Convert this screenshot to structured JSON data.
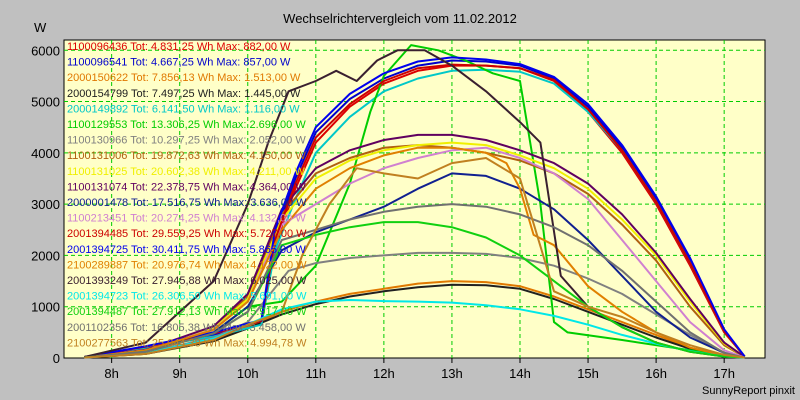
{
  "chart_data": {
    "type": "line",
    "title": "Wechselrichtervergleich vom 11.02.2012",
    "ylabel": "W",
    "footer": "SunnyReport pinxit",
    "ylim": [
      0,
      6200
    ],
    "xlim": [
      7.3,
      17.6
    ],
    "y_ticks": [
      "0",
      "1000",
      "2000",
      "3000",
      "4000",
      "5000",
      "6000"
    ],
    "x_ticks": [
      "8h",
      "9h",
      "10h",
      "11h",
      "12h",
      "13h",
      "14h",
      "15h",
      "16h",
      "17h"
    ],
    "grid": true,
    "legend_position": "top-left",
    "plot_background": "#ffffc8",
    "grid_color": "#00cc00",
    "series": [
      {
        "name": "1100096436 Tot: 4.831,25 Wh Max: 882,00 W",
        "color": "#dd0000",
        "x": [
          7.6,
          8.5,
          9.5,
          10.2,
          10.4,
          10.7,
          11.0,
          11.5,
          12.0,
          12.5,
          13.0,
          13.5,
          14.0,
          14.5,
          15.0,
          15.5,
          16.0,
          16.5,
          17.0,
          17.3
        ],
        "y": [
          20,
          200,
          450,
          700,
          2200,
          3300,
          4200,
          4900,
          5350,
          5600,
          5700,
          5700,
          5650,
          5400,
          4800,
          4000,
          3000,
          1800,
          500,
          30
        ]
      },
      {
        "name": "1100096541 Tot: 4.667,25 Wh Max: 857,00 W",
        "color": "#0000cc",
        "x": [
          7.6,
          8.5,
          9.5,
          10.2,
          10.4,
          10.7,
          11.0,
          11.5,
          12.0,
          12.5,
          13.0,
          13.5,
          14.0,
          14.5,
          15.0,
          15.5,
          16.0,
          16.5,
          17.0,
          17.3
        ],
        "y": [
          20,
          200,
          450,
          700,
          2400,
          3500,
          4400,
          5050,
          5450,
          5700,
          5800,
          5780,
          5700,
          5450,
          4900,
          4100,
          3100,
          1900,
          550,
          30
        ]
      },
      {
        "name": "2000150622 Tot: 7.856,13 Wh Max: 1.513,00 W",
        "color": "#e07800",
        "x": [
          7.6,
          8.5,
          9.5,
          10.0,
          10.5,
          11.0,
          11.5,
          12.0,
          12.5,
          13.0,
          13.5,
          14.0,
          14.5,
          15.0,
          15.5,
          16.0,
          16.5,
          17.0,
          17.3
        ],
        "y": [
          10,
          80,
          350,
          600,
          900,
          1100,
          1250,
          1350,
          1450,
          1500,
          1480,
          1400,
          1200,
          950,
          700,
          450,
          200,
          50,
          10
        ]
      },
      {
        "name": "2000154799 Tot: 7.497,25 Wh Max: 1.445,00 W",
        "color": "#202020",
        "x": [
          7.6,
          8.5,
          9.5,
          10.0,
          10.5,
          11.0,
          11.5,
          12.0,
          12.5,
          13.0,
          13.5,
          14.0,
          14.5,
          15.0,
          15.5,
          16.0,
          16.5,
          17.0,
          17.3
        ],
        "y": [
          10,
          80,
          330,
          580,
          850,
          1050,
          1200,
          1300,
          1380,
          1430,
          1420,
          1350,
          1150,
          900,
          650,
          400,
          180,
          40,
          10
        ]
      },
      {
        "name": "2000149892 Tot: 6.141,50 Wh Max: 1.116,00 W",
        "color": "#00c8c8",
        "x": [
          7.6,
          8.5,
          9.5,
          10.2,
          10.4,
          10.7,
          11.0,
          11.5,
          12.0,
          12.5,
          13.0,
          13.5,
          14.0,
          14.5,
          15.0,
          15.5,
          16.0,
          16.5,
          17.0,
          17.3
        ],
        "y": [
          20,
          200,
          420,
          650,
          2100,
          3100,
          4000,
          4700,
          5200,
          5450,
          5600,
          5620,
          5580,
          5350,
          4800,
          4050,
          3050,
          1850,
          520,
          30
        ]
      },
      {
        "name": "1100129553 Tot: 13.306,25 Wh Max: 2.696,00 W",
        "color": "#00cc00",
        "x": [
          7.6,
          8.5,
          9.5,
          10.0,
          10.5,
          11.0,
          11.5,
          11.8,
          12.0,
          12.4,
          12.8,
          13.2,
          13.6,
          14.0,
          14.3,
          14.5,
          14.7,
          15.5,
          16.5,
          17.2
        ],
        "y": [
          10,
          150,
          500,
          1000,
          1100,
          1800,
          3400,
          4800,
          5500,
          6100,
          6000,
          5800,
          5550,
          5400,
          3000,
          700,
          500,
          350,
          150,
          20
        ]
      },
      {
        "name": "1100130966 Tot: 10.297,25 Wh Max: 2.052,00 W",
        "color": "#808080",
        "x": [
          7.6,
          8.5,
          9.5,
          10.0,
          10.6,
          11.0,
          11.5,
          12.0,
          12.5,
          13.0,
          13.5,
          14.0,
          14.5,
          15.0,
          15.5,
          16.0,
          16.5,
          17.0,
          17.3
        ],
        "y": [
          10,
          100,
          400,
          700,
          1700,
          1850,
          1950,
          2000,
          2050,
          2050,
          2030,
          1950,
          1800,
          1550,
          1250,
          850,
          450,
          100,
          10
        ]
      },
      {
        "name": "1100131006 Tot: 19.872,63 Wh Max: 4.150,00 W",
        "color": "#b06010",
        "x": [
          7.6,
          8.5,
          9.5,
          10.0,
          10.5,
          11.0,
          11.5,
          12.0,
          12.5,
          13.0,
          13.5,
          14.0,
          14.5,
          15.0,
          15.5,
          16.0,
          16.5,
          17.0,
          17.3
        ],
        "y": [
          10,
          150,
          600,
          1200,
          2800,
          3600,
          3900,
          4100,
          4150,
          4100,
          4000,
          3850,
          3600,
          3200,
          2600,
          1900,
          1000,
          250,
          20
        ]
      },
      {
        "name": "1100131025 Tot: 20.602,38 Wh Max: 4.211,00 W",
        "color": "#f0f000",
        "x": [
          7.6,
          8.5,
          9.5,
          10.0,
          10.5,
          11.0,
          11.5,
          12.0,
          12.5,
          13.0,
          13.5,
          14.0,
          14.5,
          15.0,
          15.5,
          16.0,
          16.5,
          17.0,
          17.3
        ],
        "y": [
          10,
          150,
          580,
          1150,
          2700,
          3500,
          3850,
          4050,
          4150,
          4200,
          4150,
          3950,
          3700,
          3300,
          2700,
          2000,
          1100,
          280,
          20
        ]
      },
      {
        "name": "1100131074 Tot: 22.378,75 Wh Max: 4.364,00 W",
        "color": "#600060",
        "x": [
          7.6,
          8.5,
          9.5,
          10.0,
          10.5,
          11.0,
          11.5,
          12.0,
          12.5,
          13.0,
          13.5,
          14.0,
          14.5,
          15.0,
          15.5,
          16.0,
          16.5,
          17.0,
          17.3
        ],
        "y": [
          10,
          160,
          620,
          1250,
          2900,
          3700,
          4050,
          4250,
          4350,
          4350,
          4250,
          4050,
          3800,
          3400,
          2800,
          2050,
          1150,
          300,
          20
        ]
      },
      {
        "name": "2000001478 Tot: 17.516,75 Wh Max: 3.636,00 W",
        "color": "#102090",
        "x": [
          7.6,
          8.5,
          9.5,
          10.0,
          10.5,
          11.0,
          11.5,
          12.0,
          12.5,
          13.0,
          13.5,
          14.0,
          14.5,
          15.0,
          15.5,
          16.0,
          16.5,
          17.0,
          17.3
        ],
        "y": [
          10,
          120,
          500,
          1000,
          2100,
          2450,
          2700,
          2950,
          3300,
          3600,
          3550,
          3300,
          2900,
          2300,
          1600,
          900,
          400,
          100,
          10
        ]
      },
      {
        "name": "1100213451 Tot: 20.274,25 Wh Max: 4.132,00 W",
        "color": "#d080d0",
        "x": [
          7.6,
          8.5,
          9.5,
          10.0,
          10.5,
          11.0,
          11.5,
          12.0,
          12.5,
          13.0,
          13.5,
          14.0,
          14.5,
          15.0,
          15.5,
          16.0,
          16.5,
          17.0,
          17.3
        ],
        "y": [
          10,
          150,
          560,
          1100,
          2600,
          3000,
          3400,
          3700,
          3900,
          4050,
          4100,
          3900,
          3600,
          3100,
          2300,
          1500,
          700,
          150,
          10
        ]
      },
      {
        "name": "2001394485 Tot: 29.559,25 Wh Max: 5.727,00 W",
        "color": "#cc0000",
        "x": [
          7.6,
          8.5,
          9.5,
          10.2,
          10.4,
          10.7,
          11.0,
          11.5,
          12.0,
          12.5,
          13.0,
          13.5,
          14.0,
          14.5,
          15.0,
          15.5,
          16.0,
          16.5,
          17.0,
          17.3
        ],
        "y": [
          20,
          220,
          480,
          720,
          2300,
          3400,
          4300,
          4950,
          5400,
          5650,
          5720,
          5700,
          5650,
          5420,
          4850,
          4050,
          3050,
          1850,
          520,
          30
        ]
      },
      {
        "name": "2001394725 Tot: 30.411,75 Wh Max: 5.865,00 W",
        "color": "#0000ee",
        "x": [
          7.6,
          8.5,
          9.5,
          10.2,
          10.4,
          10.7,
          11.0,
          11.5,
          12.0,
          12.5,
          13.0,
          13.5,
          14.0,
          14.5,
          15.0,
          15.5,
          16.0,
          16.5,
          17.0,
          17.3
        ],
        "y": [
          20,
          230,
          500,
          740,
          2500,
          3600,
          4500,
          5150,
          5550,
          5780,
          5860,
          5820,
          5730,
          5480,
          4950,
          4150,
          3150,
          1950,
          560,
          30
        ]
      },
      {
        "name": "2100289887 Tot: 20.976,74 Wh Max: 4.122,00 W",
        "color": "#e08000",
        "x": [
          7.6,
          8.5,
          9.5,
          10.0,
          10.5,
          11.0,
          11.5,
          12.0,
          12.5,
          13.0,
          13.5,
          13.8,
          14.0,
          14.2,
          14.5,
          15.0,
          15.5,
          16.0,
          16.5,
          17.0,
          17.3
        ],
        "y": [
          10,
          150,
          550,
          1100,
          2500,
          3300,
          3700,
          3950,
          4100,
          4100,
          4000,
          3800,
          3300,
          2400,
          2200,
          1400,
          900,
          500,
          200,
          50,
          10
        ]
      },
      {
        "name": "2001393249 Tot: 27.945,88 Wh Max: 6.025,00 W",
        "color": "#3a2030",
        "x": [
          7.6,
          8.5,
          9.5,
          10.0,
          10.3,
          10.6,
          11.0,
          11.3,
          11.6,
          11.9,
          12.2,
          12.6,
          13.0,
          13.5,
          14.0,
          14.3,
          14.6,
          15.0,
          15.5,
          16.0,
          16.5,
          17.0,
          17.2
        ],
        "y": [
          20,
          300,
          1500,
          3000,
          4200,
          5200,
          5400,
          5600,
          5400,
          5800,
          6000,
          6000,
          5700,
          5200,
          4600,
          4200,
          1600,
          1000,
          600,
          300,
          120,
          30,
          10
        ]
      },
      {
        "name": "2001394723 Tot: 26.306,50 Wh Max: 5.691,00 W",
        "color": "#00e8e8",
        "x": [
          7.6,
          8.5,
          9.5,
          10.0,
          10.5,
          11.0,
          11.5,
          12.0,
          12.5,
          13.0,
          13.5,
          14.0,
          14.5,
          15.0,
          15.5,
          16.0,
          16.5,
          17.0,
          17.3
        ],
        "y": [
          10,
          90,
          380,
          650,
          950,
          1100,
          1130,
          1110,
          1100,
          1080,
          1030,
          950,
          820,
          650,
          450,
          280,
          130,
          30,
          10
        ]
      },
      {
        "name": "2001394487 Tot: 27.912,13 Wh Max: 5.917,00 W",
        "color": "#10d010",
        "x": [
          7.6,
          8.5,
          9.5,
          10.0,
          10.5,
          11.0,
          11.5,
          12.0,
          12.5,
          13.0,
          13.5,
          14.0,
          14.5,
          15.0,
          15.5,
          16.0,
          16.5,
          17.0,
          17.3
        ],
        "y": [
          10,
          120,
          480,
          900,
          2200,
          2400,
          2550,
          2650,
          2650,
          2550,
          2350,
          2000,
          1500,
          1000,
          600,
          300,
          120,
          30,
          10
        ]
      },
      {
        "name": "2001102356 Tot: 16.805,38 Wh Max: 3.458,00 W",
        "color": "#707070",
        "x": [
          7.6,
          8.5,
          9.5,
          10.0,
          10.5,
          11.0,
          11.5,
          12.0,
          12.5,
          13.0,
          13.5,
          14.0,
          14.5,
          15.0,
          15.5,
          16.0,
          16.5,
          17.0,
          17.3
        ],
        "y": [
          10,
          120,
          480,
          900,
          2300,
          2500,
          2700,
          2850,
          2950,
          3000,
          2950,
          2800,
          2550,
          2200,
          1700,
          1100,
          500,
          100,
          10
        ]
      },
      {
        "name": "2100277563 Tot: 25.044,38 Wh Max: 4.994,78 W",
        "color": "#c08020",
        "x": [
          7.6,
          8.5,
          9.5,
          10.0,
          10.5,
          10.8,
          11.2,
          11.6,
          12.0,
          12.5,
          13.0,
          13.5,
          14.0,
          14.5,
          15.0,
          15.5,
          16.0,
          16.5,
          17.0,
          17.3
        ],
        "y": [
          10,
          80,
          350,
          650,
          900,
          2000,
          3000,
          3700,
          3600,
          3500,
          3800,
          3900,
          3500,
          1300,
          1000,
          800,
          500,
          250,
          60,
          10
        ]
      }
    ]
  }
}
